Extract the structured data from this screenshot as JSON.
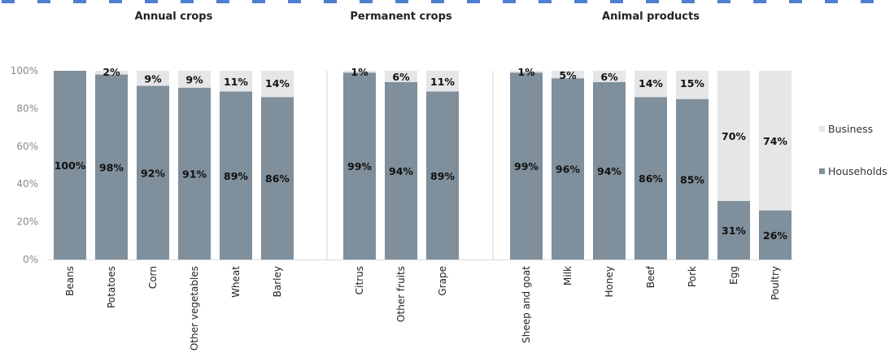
{
  "chart_data": {
    "type": "bar",
    "stacked": true,
    "ylim": [
      0,
      100
    ],
    "yticks": [
      "0%",
      "20%",
      "40%",
      "60%",
      "80%",
      "100%"
    ],
    "colors": {
      "Households": "#7f8f9b",
      "Business": "#e5e6e8",
      "header_dashes": "#4e7fd0"
    },
    "legend_position": "right",
    "series": [
      {
        "name": "Households",
        "color": "#7f8f9b"
      },
      {
        "name": "Business",
        "color": "#e5e6e8"
      }
    ],
    "groups": [
      {
        "title": "Annual crops",
        "categories": [
          "Beans",
          "Potatoes",
          "Corn",
          "Other vegetables",
          "Wheat",
          "Barley"
        ],
        "households": [
          100,
          98,
          92,
          91,
          89,
          86
        ],
        "business": [
          0,
          2,
          9,
          9,
          11,
          14
        ],
        "households_labels": [
          "100%",
          "98%",
          "92%",
          "91%",
          "89%",
          "86%"
        ],
        "business_labels": [
          "",
          "2%",
          "9%",
          "9%",
          "11%",
          "14%"
        ]
      },
      {
        "title": "Permanent crops",
        "categories": [
          "Citrus",
          "Other fruits",
          "Grape"
        ],
        "households": [
          99,
          94,
          89
        ],
        "business": [
          1,
          6,
          11
        ],
        "households_labels": [
          "99%",
          "94%",
          "89%"
        ],
        "business_labels": [
          "1%",
          "6%",
          "11%"
        ]
      },
      {
        "title": "Animal products",
        "categories": [
          "Sheep and goat",
          "Milk",
          "Honey",
          "Beef",
          "Pork",
          "Egg",
          "Poultry"
        ],
        "households": [
          99,
          96,
          94,
          86,
          85,
          31,
          26
        ],
        "business": [
          1,
          5,
          6,
          14,
          15,
          70,
          74
        ],
        "households_labels": [
          "99%",
          "96%",
          "94%",
          "86%",
          "85%",
          "31%",
          "26%"
        ],
        "business_labels": [
          "1%",
          "5%",
          "6%",
          "14%",
          "15%",
          "70%",
          "74%"
        ]
      }
    ]
  }
}
